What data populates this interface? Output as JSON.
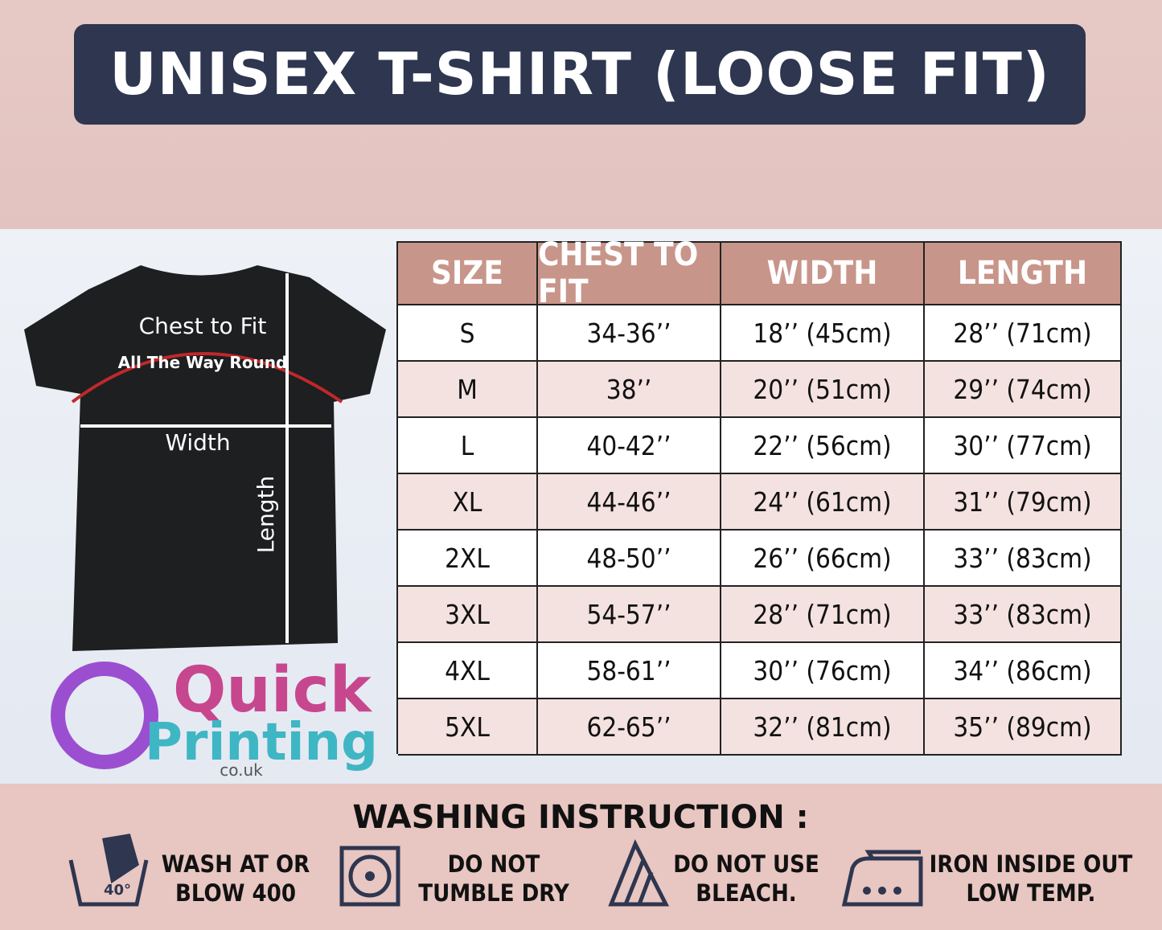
{
  "header": {
    "title": "UNISEX T-SHIRT (LOOSE FIT)"
  },
  "diagram": {
    "chest_label": "Chest to Fit",
    "chest_note": "All The Way Round",
    "width_label": "Width",
    "length_label": "Length"
  },
  "logo": {
    "line1": "Quick",
    "line2": "Printing",
    "domain": "co.uk"
  },
  "table": {
    "headers": [
      "SIZE",
      "CHEST TO FIT",
      "WIDTH",
      "LENGTH"
    ],
    "rows": [
      [
        "S",
        "34-36’’",
        "18’’ (45cm)",
        "28’’ (71cm)"
      ],
      [
        "M",
        "38’’",
        "20’’ (51cm)",
        "29’’ (74cm)"
      ],
      [
        "L",
        "40-42’’",
        "22’’ (56cm)",
        "30’’ (77cm)"
      ],
      [
        "XL",
        "44-46’’",
        "24’’ (61cm)",
        "31’’ (79cm)"
      ],
      [
        "2XL",
        "48-50’’",
        "26’’ (66cm)",
        "33’’ (83cm)"
      ],
      [
        "3XL",
        "54-57’’",
        "28’’ (71cm)",
        "33’’ (83cm)"
      ],
      [
        "4XL",
        "58-61’’",
        "30’’ (76cm)",
        "34’’ (86cm)"
      ],
      [
        "5XL",
        "62-65’’",
        "32’’ (81cm)",
        "35’’ (89cm)"
      ]
    ]
  },
  "washing": {
    "title": "WASHING INSTRUCTION :",
    "temp": "40°",
    "items": [
      [
        "WASH AT OR",
        "BLOW 400"
      ],
      [
        "DO NOT",
        "TUMBLE DRY"
      ],
      [
        "DO NOT USE",
        "BLEACH."
      ],
      [
        "IRON INSIDE OUT",
        "LOW TEMP."
      ]
    ]
  }
}
